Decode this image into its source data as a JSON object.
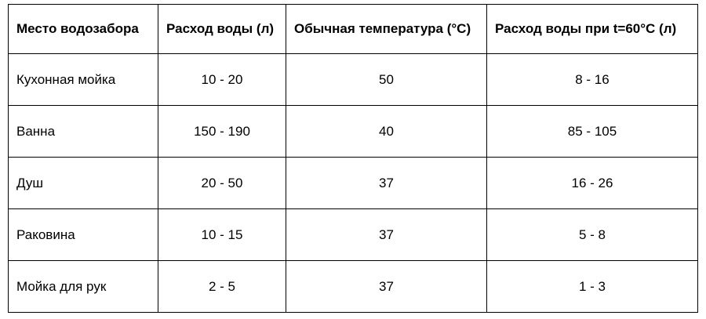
{
  "table": {
    "headers": [
      "Место водозабора",
      "Расход воды (л)",
      "Обычная температура (°C)",
      "Расход воды при t=60°C (л)"
    ],
    "rows": [
      [
        "Кухонная мойка",
        "10 - 20",
        "50",
        "8 - 16"
      ],
      [
        "Ванна",
        "150 - 190",
        "40",
        "85 - 105"
      ],
      [
        "Душ",
        "20 - 50",
        "37",
        "16 - 26"
      ],
      [
        "Раковина",
        "10 - 15",
        "37",
        "5 - 8"
      ],
      [
        "Мойка для рук",
        "2 - 5",
        "37",
        "1 - 3"
      ]
    ]
  }
}
